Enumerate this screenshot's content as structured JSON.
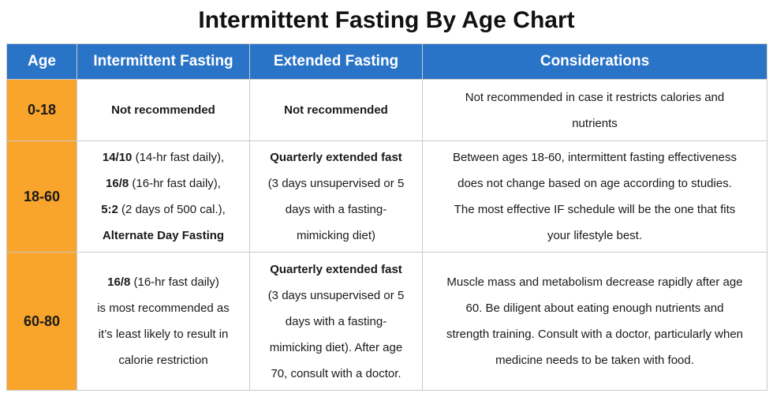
{
  "title": "Intermittent Fasting By Age Chart",
  "headers": [
    "Age",
    "Intermittent Fasting",
    "Extended Fasting",
    "Considerations"
  ],
  "rows": [
    {
      "age": "0-18",
      "if_text": "Not recommended",
      "ext_text": "Not recommended",
      "considerations": [
        "Not recommended in case it restricts calories and",
        "nutrients"
      ]
    },
    {
      "age": "18-60",
      "if_lines": [
        {
          "b": "14/10",
          "t": " (14-hr fast daily),"
        },
        {
          "b": "16/8",
          "t": " (16-hr fast daily),"
        },
        {
          "b": "5:2",
          "t": " (2 days of 500 cal.),"
        },
        {
          "b": "Alternate Day Fasting",
          "t": ""
        }
      ],
      "ext_bold": "Quarterly extended fast",
      "ext_lines": [
        "(3 days unsupervised or 5",
        "days with a fasting-",
        "mimicking diet)"
      ],
      "considerations": [
        "Between ages 18-60, intermittent fasting effectiveness",
        "does not change based on age according to studies.",
        "The most effective IF schedule will be the one that fits",
        "your lifestyle best."
      ]
    },
    {
      "age": "60-80",
      "if_bold": "16/8",
      "if_first_rest": " (16-hr fast daily)",
      "if_lines": [
        "is most recommended as",
        "it’s least likely to result in",
        "calorie restriction"
      ],
      "ext_bold": "Quarterly extended fast",
      "ext_lines": [
        "(3 days unsupervised or 5",
        "days with a fasting-",
        "mimicking diet). After age",
        "70, consult with a doctor."
      ],
      "considerations": [
        "Muscle mass and metabolism decrease rapidly after age",
        "60. Be diligent about eating enough nutrients and",
        "strength training. Consult with a doctor, particularly when",
        "medicine needs to be taken with food."
      ]
    }
  ],
  "colors": {
    "header_bg": "#2a74c7",
    "age_bg": "#f9a42a"
  }
}
